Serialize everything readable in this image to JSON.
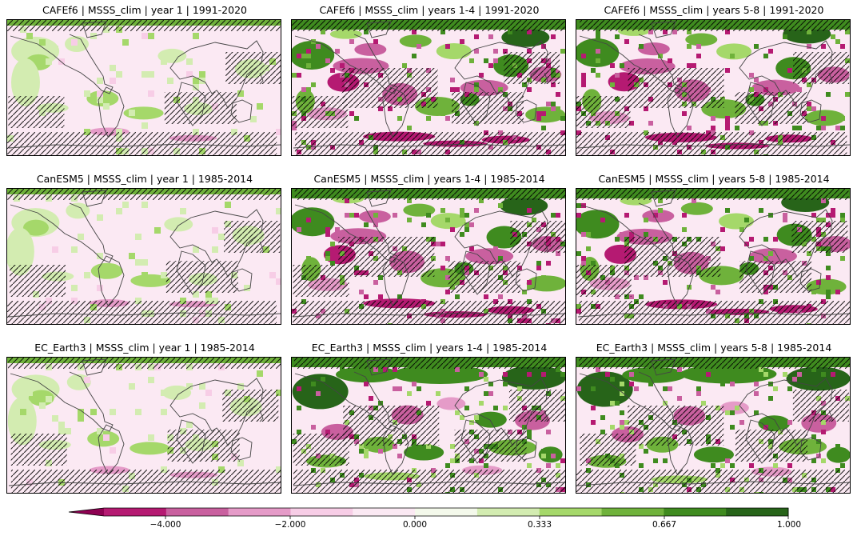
{
  "panels": [
    {
      "title": "CAFEf6 | MSSS_clim | year 1 | 1991-2020",
      "skill_level": "low"
    },
    {
      "title": "CAFEf6 | MSSS_clim | years 1-4 | 1991-2020",
      "skill_level": "high_mixed"
    },
    {
      "title": "CAFEf6 | MSSS_clim | years 5-8 | 1991-2020",
      "skill_level": "high_mixed"
    },
    {
      "title": "CanESM5 | MSSS_clim | year 1 | 1985-2014",
      "skill_level": "low"
    },
    {
      "title": "CanESM5 | MSSS_clim | years 1-4 | 1985-2014",
      "skill_level": "high_mixed"
    },
    {
      "title": "CanESM5 | MSSS_clim | years 5-8 | 1985-2014",
      "skill_level": "high_mixed"
    },
    {
      "title": "EC_Earth3 | MSSS_clim | year 1 | 1985-2014",
      "skill_level": "low"
    },
    {
      "title": "EC_Earth3 | MSSS_clim | years 1-4 | 1985-2014",
      "skill_level": "high_green"
    },
    {
      "title": "EC_Earth3 | MSSS_clim | years 5-8 | 1985-2014",
      "skill_level": "high_green"
    }
  ],
  "chart_data": {
    "type": "heatmap",
    "colorbar": {
      "bounds": [
        -5.333,
        -4.667,
        -4.0,
        -3.0,
        -2.0,
        -1.0,
        0.0,
        0.111,
        0.222,
        0.333,
        0.444,
        0.556,
        0.667,
        0.778,
        0.889,
        1.0
      ],
      "colors": [
        "#8e0152",
        "#b51a72",
        "#c9609f",
        "#e59bc8",
        "#f7cde6",
        "#fbe9f3",
        "#f4f9eb",
        "#d3ecb1",
        "#a5d86a",
        "#6fb23b",
        "#3f8b1f",
        "#276419"
      ],
      "extend": "min",
      "tick_labels": [
        "−4.000",
        "−2.000",
        "0.000",
        "0.333",
        "0.667",
        "1.000"
      ]
    }
  }
}
